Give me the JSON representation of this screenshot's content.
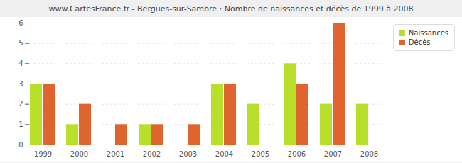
{
  "chart_data": {
    "type": "bar",
    "title": "www.CartesFrance.fr - Bergues-sur-Sambre : Nombre de naissances et décès de 1999 à 2008",
    "categories": [
      "1999",
      "2000",
      "2001",
      "2002",
      "2003",
      "2004",
      "2005",
      "2006",
      "2007",
      "2008"
    ],
    "series": [
      {
        "name": "Naissances",
        "color": "#b8e02a",
        "values": [
          3,
          1,
          0,
          1,
          0,
          3,
          2,
          4,
          2,
          2
        ]
      },
      {
        "name": "Décès",
        "color": "#e0642e",
        "values": [
          3,
          2,
          1,
          1,
          1,
          3,
          0,
          3,
          6,
          0
        ]
      }
    ],
    "ylim": [
      0,
      6
    ],
    "yticks": [
      0,
      1,
      2,
      3,
      4,
      5,
      6
    ],
    "grid": true,
    "legend": "top-right"
  }
}
